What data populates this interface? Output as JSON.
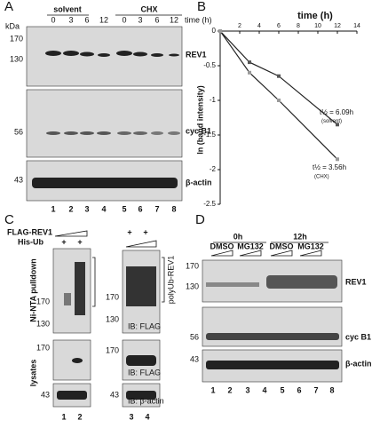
{
  "panel_a": {
    "label": "A",
    "groups": [
      "solvent",
      "CHX"
    ],
    "time_label": "time (h)",
    "times": [
      "0",
      "3",
      "6",
      "12",
      "0",
      "3",
      "6",
      "12"
    ],
    "unit": "kDa",
    "blots": [
      {
        "name": "REV1",
        "markers": [
          170,
          130
        ]
      },
      {
        "name": "cyc B1",
        "markers": [
          56
        ]
      },
      {
        "name": "β-actin",
        "markers": [
          43
        ]
      }
    ],
    "lanes": [
      "1",
      "2",
      "3",
      "4",
      "5",
      "6",
      "7",
      "8"
    ]
  },
  "chart_data": {
    "type": "line",
    "label": "B",
    "xlabel": "time (h)",
    "ylabel": "ln (band intensity)",
    "xlim": [
      0,
      14
    ],
    "xticks": [
      2,
      4,
      6,
      8,
      10,
      12,
      14
    ],
    "ylim": [
      -2.5,
      0
    ],
    "yticks": [
      0,
      -0.5,
      -1,
      -1.5,
      -2,
      -2.5
    ],
    "series": [
      {
        "color": "#555555",
        "x": [
          0,
          3,
          6,
          12
        ],
        "values": [
          0,
          -0.45,
          -0.65,
          -1.35
        ]
      },
      {
        "color": "#999999",
        "x": [
          0,
          3,
          6,
          12
        ],
        "values": [
          0,
          -0.6,
          -1.0,
          -1.85
        ]
      }
    ],
    "annotations": [
      "t½ = 6.09h",
      "(solvent)",
      "t½ = 3.56h",
      "(CHX)"
    ]
  },
  "panel_c": {
    "label": "C",
    "rows": [
      "FLAG-REV1",
      "His-Ub"
    ],
    "plus": [
      "+",
      "+",
      "+",
      "+",
      "+",
      "+"
    ],
    "side_labels": [
      "Ni-NTA pulldown",
      "lysates",
      "polyUb-REV1"
    ],
    "ib": [
      "IB: FLAG",
      "IB: FLAG",
      "IB: β-actin"
    ],
    "markers": [
      170,
      130,
      170,
      43,
      170,
      130,
      170,
      43
    ],
    "lanes": [
      "1",
      "2",
      "3",
      "4"
    ]
  },
  "panel_d": {
    "label": "D",
    "times": [
      "0h",
      "12h"
    ],
    "treatments": [
      "DMSO",
      "MG132",
      "DMSO",
      "MG132"
    ],
    "blots": [
      {
        "name": "REV1",
        "markers": [
          170,
          130
        ]
      },
      {
        "name": "cyc B1",
        "markers": [
          56
        ]
      },
      {
        "name": "β-actin",
        "markers": [
          43
        ]
      }
    ],
    "lanes": [
      "1",
      "2",
      "3",
      "4",
      "5",
      "6",
      "7",
      "8"
    ]
  }
}
